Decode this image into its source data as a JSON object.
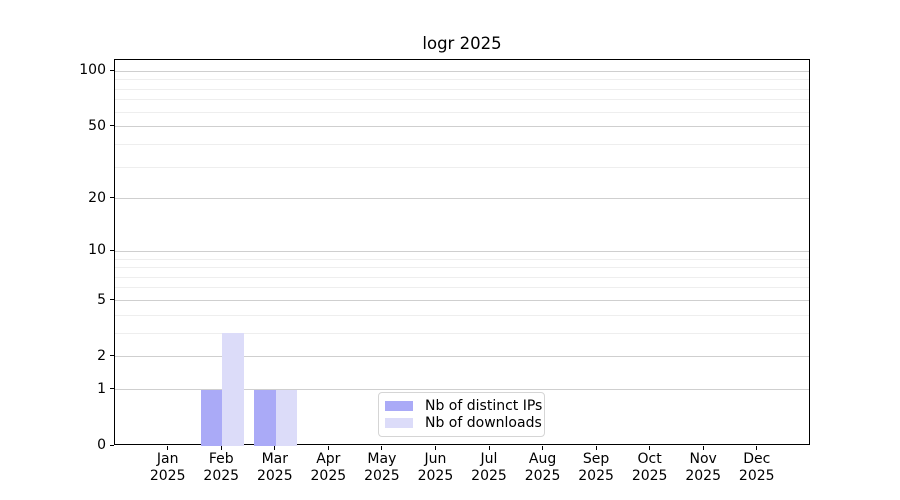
{
  "chart_data": {
    "type": "bar",
    "title": "logr 2025",
    "xlabel": "",
    "ylabel": "",
    "categories": [
      "Jan",
      "Feb",
      "Mar",
      "Apr",
      "May",
      "Jun",
      "Jul",
      "Aug",
      "Sep",
      "Oct",
      "Nov",
      "Dec"
    ],
    "x_year_label": "2025",
    "series": [
      {
        "name": "Nb of distinct IPs",
        "color": "#aaaaf7",
        "values": [
          0,
          1,
          1,
          0,
          0,
          0,
          0,
          0,
          0,
          0,
          0,
          0
        ]
      },
      {
        "name": "Nb of downloads",
        "color": "#dcdcf9",
        "values": [
          0,
          3,
          1,
          0,
          0,
          0,
          0,
          0,
          0,
          0,
          0,
          0
        ]
      }
    ],
    "yscale": "log1p",
    "ylim": [
      0,
      115
    ],
    "yticks": [
      0,
      1,
      2,
      5,
      10,
      20,
      50,
      100
    ],
    "yticks_minor": [
      3,
      4,
      6,
      7,
      8,
      9,
      30,
      40,
      60,
      70,
      80,
      90
    ],
    "grid": true,
    "legend_position": "lower center"
  },
  "colors": {
    "bar_distinct_ips": "#aaaaf7",
    "bar_downloads": "#dcdcf9",
    "grid_major": "#cfcfcf",
    "grid_minor": "#eeeeee",
    "spine": "#000000",
    "legend_border": "#d5d5d5"
  }
}
